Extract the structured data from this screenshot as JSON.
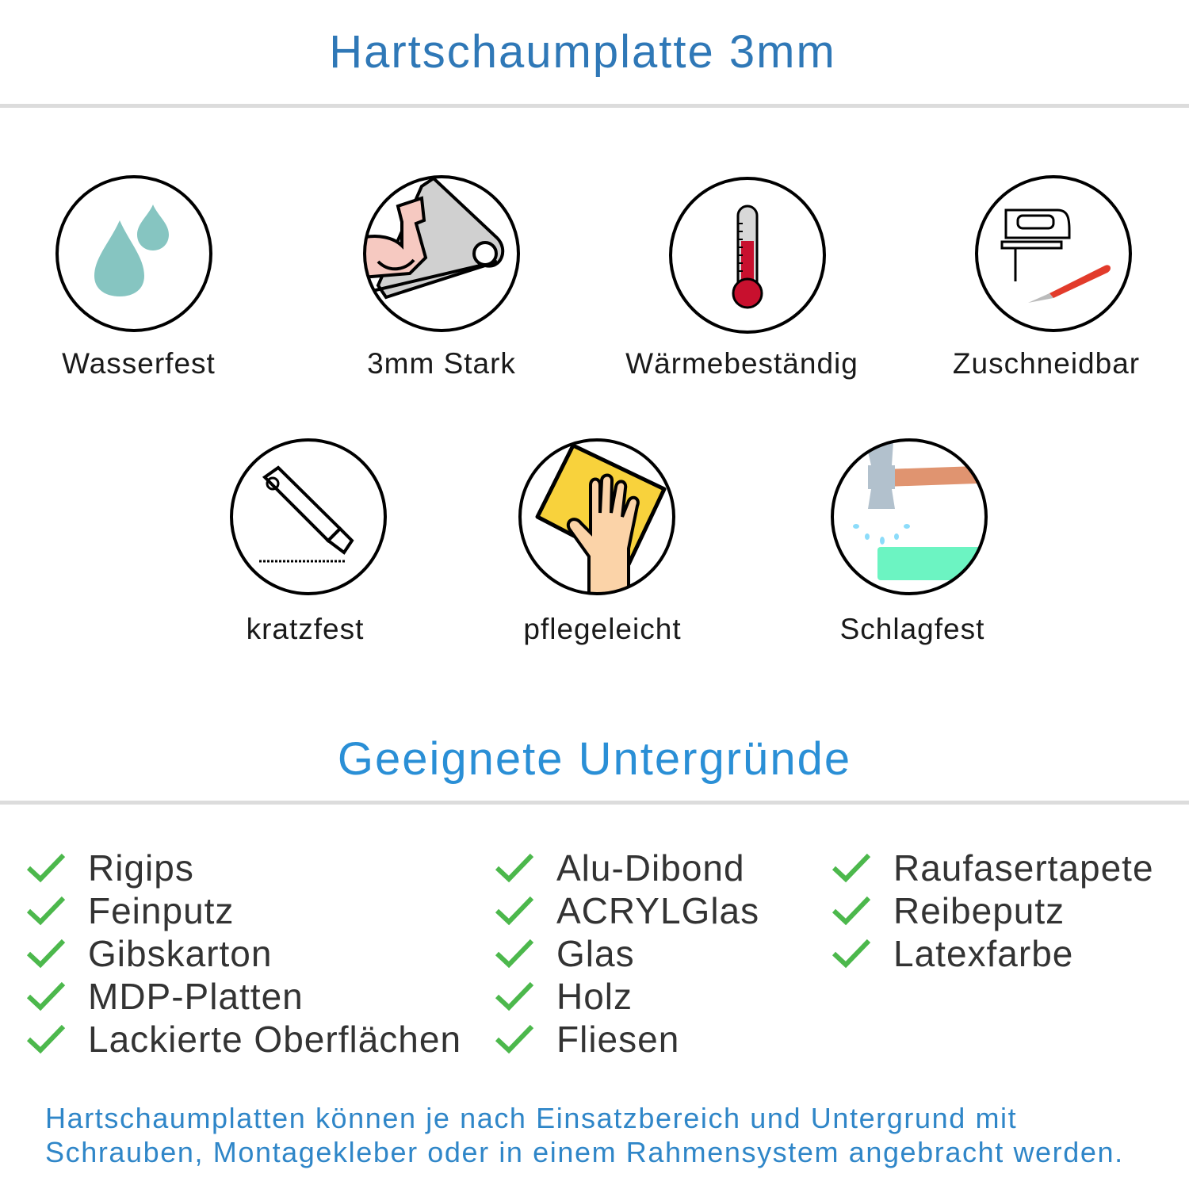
{
  "header": {
    "title": "Hartschaumplatte 3mm"
  },
  "features": [
    {
      "label": "Wasserfest",
      "icon": "water-drops-icon"
    },
    {
      "label": "3mm Stark",
      "icon": "strong-arm-icon"
    },
    {
      "label": "Wärmebeständig",
      "icon": "thermometer-icon"
    },
    {
      "label": "Zuschneidbar",
      "icon": "jigsaw-cutter-icon"
    },
    {
      "label": "kratzfest",
      "icon": "cutter-knife-icon"
    },
    {
      "label": "pflegeleicht",
      "icon": "cleaning-hand-icon"
    },
    {
      "label": "Schlagfest",
      "icon": "hammer-icon"
    }
  ],
  "surfaces": {
    "title": "Geeignete Untergründe",
    "check_color": "#4cb84c",
    "columns": [
      [
        "Rigips",
        "Feinputz",
        "Gibskarton",
        "MDP-Platten",
        "Lackierte Oberflächen"
      ],
      [
        "Alu-Dibond",
        "ACRYLGlas",
        "Glas",
        "Holz",
        "Fliesen"
      ],
      [
        "Raufasertapete",
        "Reibeputz",
        "Latexfarbe"
      ]
    ]
  },
  "footer": {
    "line1": "Hartschaumplatten können je nach Einsatzbereich und Untergrund mit",
    "line2": "Schrauben, Montagekleber oder in einem Rahmensystem angebracht werden."
  }
}
